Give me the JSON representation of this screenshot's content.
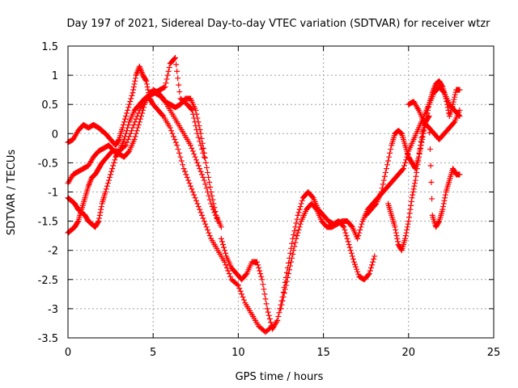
{
  "chart_data": {
    "type": "scatter",
    "title": "Day 197 of 2021, Sidereal Day-to-day VTEC variation (SDTVAR) for receiver wtzr",
    "xlabel": "GPS time / hours",
    "ylabel": "SDTVAR / TECUs",
    "xlim": [
      0,
      25
    ],
    "ylim": [
      -3.5,
      1.5
    ],
    "xticks": [
      0,
      5,
      10,
      15,
      20,
      25
    ],
    "yticks": [
      -3.5,
      -3,
      -2.5,
      -2,
      -1.5,
      -1,
      -0.5,
      0,
      0.5,
      1,
      1.5
    ],
    "xtick_labels": [
      "0",
      "5",
      "10",
      "15",
      "20",
      "25"
    ],
    "ytick_labels": [
      "-3.5",
      "-3",
      "-2.5",
      "-2",
      "-1.5",
      "-1",
      "-0.5",
      "0",
      "0.5",
      "1",
      "1.5"
    ],
    "grid": true,
    "marker": "plus",
    "color": "#ff0000",
    "series": [
      {
        "x": [
          0.0,
          0.3,
          0.6,
          0.9,
          1.2,
          1.5,
          1.8,
          2.0,
          2.2,
          2.5,
          2.8,
          3.0,
          3.2,
          3.5,
          3.8,
          4.0,
          4.2,
          4.4,
          4.6,
          4.8,
          5.0,
          5.3,
          5.6,
          6.0,
          6.4,
          6.8,
          7.2,
          7.6,
          8.0,
          8.4,
          8.8,
          9.2,
          9.6,
          10.0,
          10.4,
          10.8,
          11.2,
          11.6,
          12.0
        ],
        "y": [
          -0.15,
          -0.1,
          0.05,
          0.15,
          0.1,
          0.15,
          0.1,
          0.05,
          0.0,
          -0.1,
          -0.2,
          -0.1,
          0.1,
          0.4,
          0.7,
          1.0,
          1.15,
          1.0,
          0.9,
          0.6,
          0.5,
          0.4,
          0.3,
          0.1,
          -0.2,
          -0.6,
          -0.9,
          -1.2,
          -1.5,
          -1.8,
          -2.0,
          -2.2,
          -2.5,
          -2.6,
          -2.9,
          -3.1,
          -3.3,
          -3.4,
          -3.3
        ]
      },
      {
        "x": [
          0.0,
          0.2,
          0.4,
          0.6,
          0.8,
          1.0,
          1.2,
          1.4,
          1.6,
          1.8,
          2.0,
          2.3,
          2.6,
          3.0,
          3.4,
          3.8,
          4.2,
          4.6,
          5.0,
          5.3,
          5.6,
          6.0,
          6.4,
          6.8,
          7.2,
          7.6,
          8.0,
          8.4,
          8.8
        ],
        "y": [
          -1.7,
          -1.65,
          -1.6,
          -1.5,
          -1.3,
          -1.1,
          -0.9,
          -0.75,
          -0.7,
          -0.6,
          -0.5,
          -0.4,
          -0.3,
          -0.3,
          -0.2,
          0.1,
          0.4,
          0.6,
          0.75,
          0.7,
          0.6,
          0.4,
          0.2,
          0.0,
          -0.2,
          -0.5,
          -0.8,
          -1.2,
          -1.5
        ]
      },
      {
        "x": [
          0.0,
          0.2,
          0.4,
          0.6,
          0.8,
          1.0,
          1.2,
          1.4,
          1.6,
          1.8,
          2.0,
          2.2,
          2.5,
          2.8,
          3.0,
          3.3,
          3.6,
          3.9,
          4.2,
          4.5,
          4.8,
          5.1,
          5.4,
          5.7,
          6.0,
          6.3,
          6.6,
          7.0,
          7.3,
          7.6,
          8.0
        ],
        "y": [
          -1.1,
          -1.15,
          -1.2,
          -1.3,
          -1.35,
          -1.4,
          -1.5,
          -1.55,
          -1.6,
          -1.5,
          -1.2,
          -1.0,
          -0.7,
          -0.4,
          -0.3,
          -0.1,
          0.2,
          0.4,
          0.5,
          0.6,
          0.65,
          0.7,
          0.75,
          0.8,
          1.2,
          1.3,
          0.6,
          0.5,
          0.4,
          0.0,
          -0.4
        ]
      },
      {
        "x": [
          0.0,
          0.3,
          0.6,
          0.9,
          1.2,
          1.5,
          1.8,
          2.1,
          2.4,
          2.7,
          3.0,
          3.3,
          3.6,
          3.9,
          4.2,
          4.5,
          4.8,
          5.1,
          5.4,
          5.7,
          6.0,
          6.3,
          6.6,
          6.9,
          7.2,
          7.5,
          7.8,
          8.1,
          8.4,
          8.7,
          9.0
        ],
        "y": [
          -0.85,
          -0.7,
          -0.65,
          -0.6,
          -0.55,
          -0.4,
          -0.3,
          -0.25,
          -0.2,
          -0.3,
          -0.35,
          -0.4,
          -0.3,
          -0.1,
          0.2,
          0.5,
          0.7,
          0.7,
          0.65,
          0.55,
          0.5,
          0.45,
          0.5,
          0.6,
          0.6,
          0.4,
          0.0,
          -0.5,
          -1.0,
          -1.4,
          -1.6
        ]
      },
      {
        "x": [
          9.0,
          9.3,
          9.6,
          9.9,
          10.2,
          10.5,
          10.8,
          11.1,
          11.4,
          11.7,
          12.0,
          12.3,
          12.6,
          12.9,
          13.2,
          13.5,
          13.8,
          14.1,
          14.4,
          14.7,
          15.0,
          15.3,
          15.6,
          15.9,
          16.2,
          16.5,
          16.8,
          17.1,
          17.4,
          17.7,
          18.0
        ],
        "y": [
          -1.8,
          -2.1,
          -2.3,
          -2.4,
          -2.5,
          -2.4,
          -2.2,
          -2.2,
          -2.5,
          -3.0,
          -3.35,
          -3.2,
          -2.8,
          -2.3,
          -1.8,
          -1.4,
          -1.1,
          -1.0,
          -1.1,
          -1.3,
          -1.4,
          -1.5,
          -1.55,
          -1.5,
          -1.6,
          -1.9,
          -2.2,
          -2.45,
          -2.5,
          -2.4,
          -2.1
        ]
      },
      {
        "x": [
          12.5,
          12.8,
          13.1,
          13.4,
          13.7,
          14.0,
          14.3,
          14.6,
          14.9,
          15.2,
          15.5,
          15.8,
          16.1,
          16.4,
          16.7,
          17.0,
          17.3,
          17.6,
          17.9,
          18.2,
          18.5,
          18.8,
          19.1,
          19.4,
          19.7,
          20.0,
          20.3,
          20.6,
          20.9,
          21.2,
          21.5,
          21.8,
          22.1,
          22.4,
          22.7,
          23.0
        ],
        "y": [
          -3.0,
          -2.6,
          -2.2,
          -1.8,
          -1.5,
          -1.3,
          -1.2,
          -1.3,
          -1.5,
          -1.6,
          -1.6,
          -1.55,
          -1.5,
          -1.5,
          -1.6,
          -1.8,
          -1.5,
          -1.3,
          -1.2,
          -1.1,
          -1.0,
          -0.9,
          -0.8,
          -0.7,
          -0.6,
          -0.3,
          -0.1,
          0.1,
          0.3,
          0.5,
          0.7,
          0.8,
          0.7,
          0.5,
          0.4,
          0.3
        ]
      },
      {
        "x": [
          17.5,
          17.8,
          18.1,
          18.4,
          18.7,
          19.0,
          19.2,
          19.4,
          19.6,
          19.8,
          20.0,
          20.2,
          20.4,
          20.6,
          20.8,
          21.0,
          21.2,
          21.4,
          21.6,
          21.8,
          22.0,
          22.2,
          22.4,
          22.6,
          22.8,
          23.0
        ],
        "y": [
          -1.4,
          -1.3,
          -1.2,
          -1.0,
          -0.6,
          -0.2,
          0.0,
          0.05,
          0.0,
          -0.2,
          -0.4,
          -0.5,
          -0.6,
          -0.4,
          -0.1,
          0.2,
          0.5,
          0.7,
          0.85,
          0.9,
          0.8,
          0.6,
          0.3,
          0.5,
          0.75,
          0.75
        ]
      },
      {
        "x": [
          18.8,
          19.0,
          19.2,
          19.4,
          19.6,
          19.8,
          20.0,
          20.2,
          20.4,
          20.6,
          20.8,
          21.0,
          21.2,
          21.4,
          21.6,
          21.8,
          22.0,
          22.2,
          22.4,
          22.6,
          22.8,
          23.0
        ],
        "y": [
          -1.2,
          -1.4,
          -1.6,
          -1.9,
          -2.0,
          -1.8,
          -1.5,
          -1.1,
          -0.8,
          -0.4,
          0.0,
          0.2,
          0.3,
          -1.4,
          -1.6,
          -1.5,
          -1.3,
          -1.0,
          -0.8,
          -0.6,
          -0.7,
          -0.7
        ]
      },
      {
        "x": [
          20.0,
          20.3,
          20.6,
          20.9,
          21.2,
          21.5,
          21.8,
          22.1,
          22.4,
          22.7,
          23.0
        ],
        "y": [
          0.5,
          0.55,
          0.4,
          0.2,
          0.1,
          0.0,
          -0.1,
          0.0,
          0.1,
          0.2,
          0.4
        ]
      }
    ]
  }
}
